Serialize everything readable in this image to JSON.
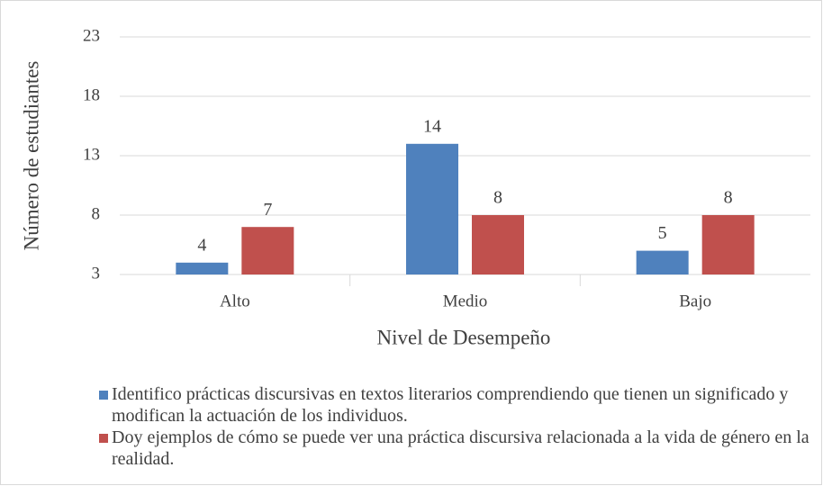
{
  "chart_data": {
    "type": "bar",
    "categories": [
      "Alto",
      "Medio",
      "Bajo"
    ],
    "series": [
      {
        "name": "Identifico prácticas discursivas en textos literarios comprendiendo que tienen un significado y modifican la actuación de los individuos.",
        "color": "#4f81bd",
        "values": [
          4,
          14,
          5
        ]
      },
      {
        "name": "Doy ejemplos de cómo se puede ver una práctica discursiva relacionada a la vida de género en la realidad.",
        "color": "#c0504d",
        "values": [
          7,
          8,
          8
        ]
      }
    ],
    "x_label": "Nivel de Desempeño",
    "y_label": "Número de estudiantes",
    "ylim": [
      3,
      23
    ],
    "yticks": [
      3,
      8,
      13,
      18,
      23
    ],
    "grid": true
  }
}
